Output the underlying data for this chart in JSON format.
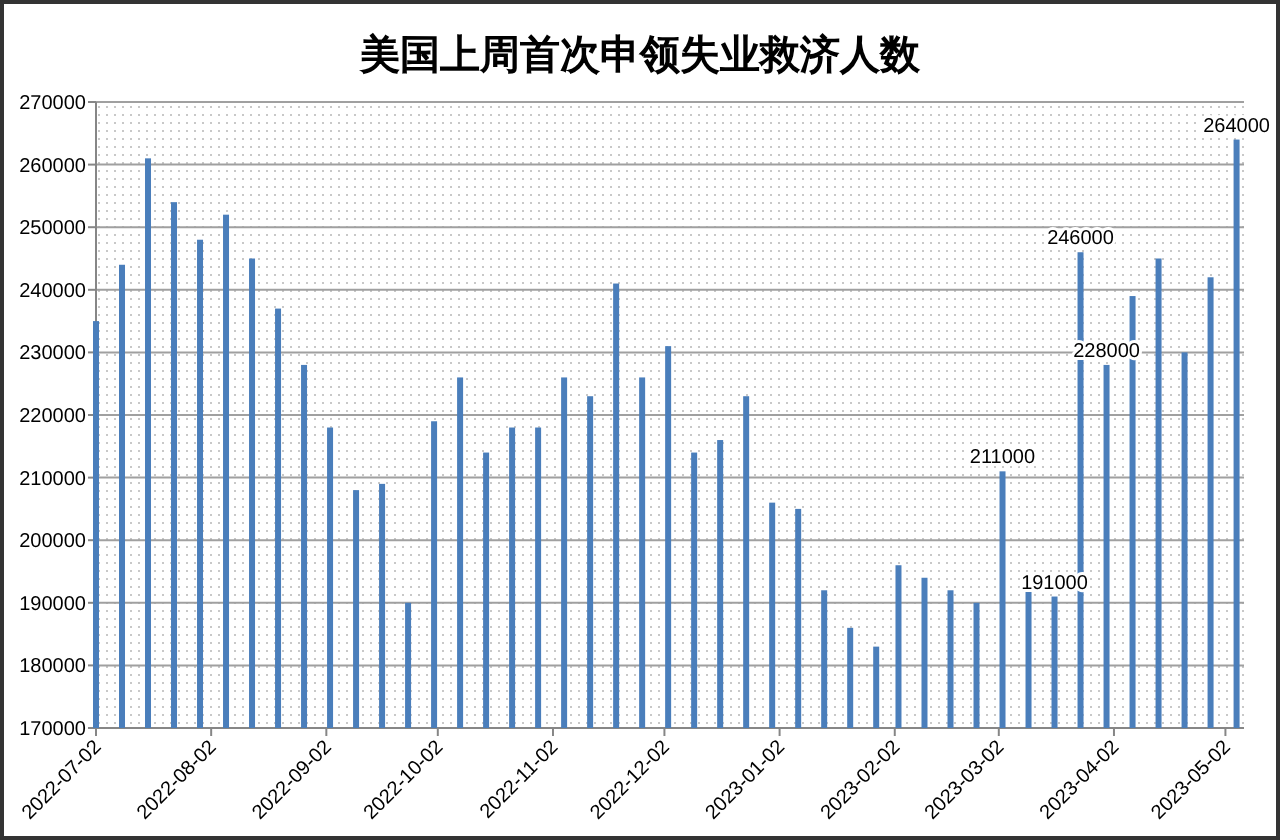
{
  "chart_data": {
    "type": "bar",
    "title": "美国上周首次申领失业救济人数",
    "x": [
      "2022-07-02",
      "2022-07-09",
      "2022-07-16",
      "2022-07-23",
      "2022-07-30",
      "2022-08-06",
      "2022-08-13",
      "2022-08-20",
      "2022-08-27",
      "2022-09-03",
      "2022-09-10",
      "2022-09-17",
      "2022-09-24",
      "2022-10-01",
      "2022-10-08",
      "2022-10-15",
      "2022-10-22",
      "2022-10-29",
      "2022-11-05",
      "2022-11-12",
      "2022-11-19",
      "2022-11-26",
      "2022-12-03",
      "2022-12-10",
      "2022-12-17",
      "2022-12-24",
      "2022-12-31",
      "2023-01-07",
      "2023-01-14",
      "2023-01-21",
      "2023-01-28",
      "2023-02-03",
      "2023-02-10",
      "2023-02-17",
      "2023-02-24",
      "2023-03-03",
      "2023-03-10",
      "2023-03-17",
      "2023-03-24",
      "2023-03-31",
      "2023-04-07",
      "2023-04-14",
      "2023-04-21",
      "2023-04-28",
      "2023-05-05"
    ],
    "values": [
      235000,
      244000,
      261000,
      254000,
      248000,
      252000,
      245000,
      237000,
      228000,
      218000,
      208000,
      209000,
      190000,
      219000,
      226000,
      214000,
      218000,
      218000,
      226000,
      223000,
      241000,
      226000,
      231000,
      214000,
      216000,
      223000,
      206000,
      205000,
      192000,
      186000,
      183000,
      196000,
      194000,
      192000,
      190000,
      211000,
      192000,
      191000,
      246000,
      228000,
      239000,
      245000,
      230000,
      242000,
      264000
    ],
    "value_labels": [
      null,
      null,
      null,
      null,
      null,
      null,
      null,
      null,
      null,
      null,
      null,
      null,
      null,
      null,
      null,
      null,
      null,
      null,
      null,
      null,
      null,
      null,
      null,
      null,
      null,
      null,
      null,
      null,
      null,
      null,
      null,
      null,
      null,
      null,
      null,
      "211000",
      null,
      "191000",
      "246000",
      "228000",
      null,
      null,
      null,
      null,
      "264000"
    ],
    "color": "#4a7ebb",
    "xlim": [
      "2022-07-02",
      "2023-05-07"
    ],
    "xticks": [
      "2022-07-02",
      "2022-08-02",
      "2022-09-02",
      "2022-10-02",
      "2022-11-02",
      "2022-12-02",
      "2023-01-02",
      "2023-02-02",
      "2023-03-02",
      "2023-04-02",
      "2023-05-02"
    ],
    "ylim": [
      170000,
      270000
    ],
    "yticks": [
      170000,
      180000,
      190000,
      200000,
      210000,
      220000,
      230000,
      240000,
      250000,
      260000,
      270000
    ],
    "grid": "y"
  }
}
